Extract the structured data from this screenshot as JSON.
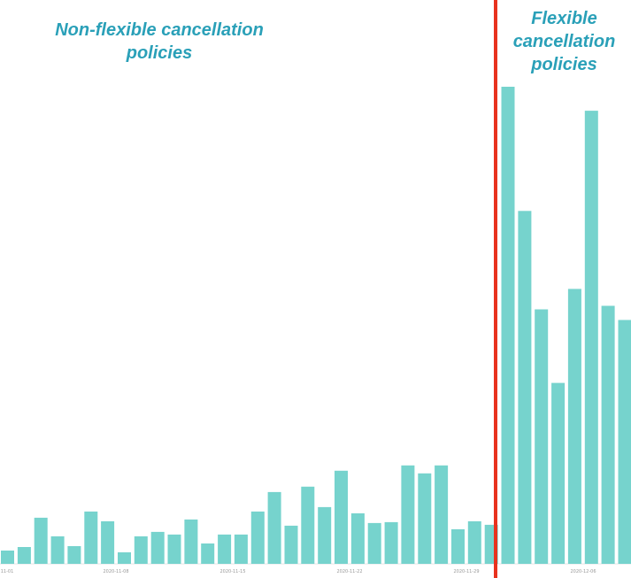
{
  "chart_data": {
    "type": "bar",
    "title": "",
    "xlabel": "",
    "ylabel": "",
    "x_tick_labels": [
      "11-01",
      "2020-11-08",
      "2020-11-15",
      "2020-11-22",
      "2020-11-29",
      "2020-12-06"
    ],
    "values": [
      15,
      19,
      52,
      31,
      20,
      59,
      48,
      13,
      31,
      36,
      33,
      50,
      23,
      33,
      33,
      59,
      81,
      43,
      87,
      64,
      105,
      57,
      46,
      47,
      111,
      102,
      111,
      39,
      48,
      44,
      538,
      398,
      287,
      204,
      310,
      511,
      291,
      275
    ],
    "ylim": [
      0,
      560
    ],
    "bar_color": "#76d3cd",
    "grid": false,
    "legend": "none",
    "divider": {
      "after_index": 29,
      "color": "#e8321e"
    },
    "annotations": {
      "left": [
        "Non-flexible cancellation",
        "policies"
      ],
      "right": [
        "Flexible",
        "cancellation",
        "policies"
      ],
      "color": "#2aa0b8"
    }
  }
}
